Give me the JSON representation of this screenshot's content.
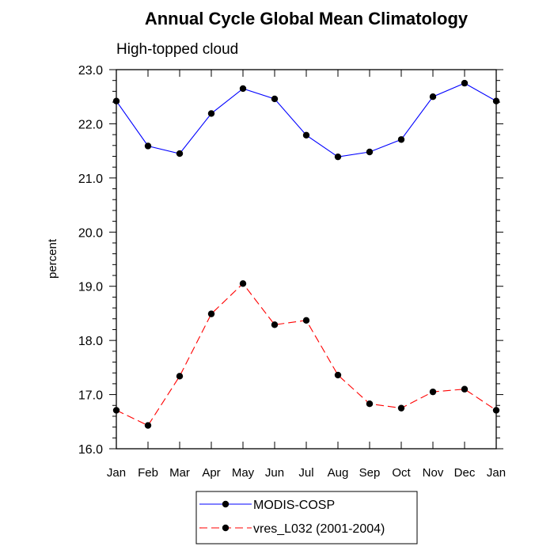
{
  "chart_data": {
    "type": "line",
    "title": "Annual Cycle Global Mean Climatology",
    "subtitle": "High-topped cloud",
    "xlabel": "",
    "ylabel": "percent",
    "categories": [
      "Jan",
      "Feb",
      "Mar",
      "Apr",
      "May",
      "Jun",
      "Jul",
      "Aug",
      "Sep",
      "Oct",
      "Nov",
      "Dec",
      "Jan"
    ],
    "ylim": [
      16.0,
      23.0
    ],
    "yticks": [
      "16.0",
      "17.0",
      "18.0",
      "19.0",
      "20.0",
      "21.0",
      "22.0",
      "23.0"
    ],
    "grid": false,
    "legend_position": "bottom",
    "series": [
      {
        "name": "MODIS-COSP",
        "color": "#0000ff",
        "dash": "solid",
        "marker": "filled-circle",
        "values": [
          22.42,
          21.59,
          21.45,
          22.19,
          22.65,
          22.46,
          21.79,
          21.39,
          21.48,
          21.71,
          22.5,
          22.75,
          22.42
        ]
      },
      {
        "name": "vres_L032 (2001-2004)",
        "color": "#ff0000",
        "dash": "dashed",
        "marker": "filled-circle",
        "values": [
          16.71,
          16.43,
          17.34,
          18.49,
          19.05,
          18.29,
          18.37,
          17.36,
          16.83,
          16.75,
          17.05,
          17.1,
          16.71
        ]
      }
    ]
  }
}
